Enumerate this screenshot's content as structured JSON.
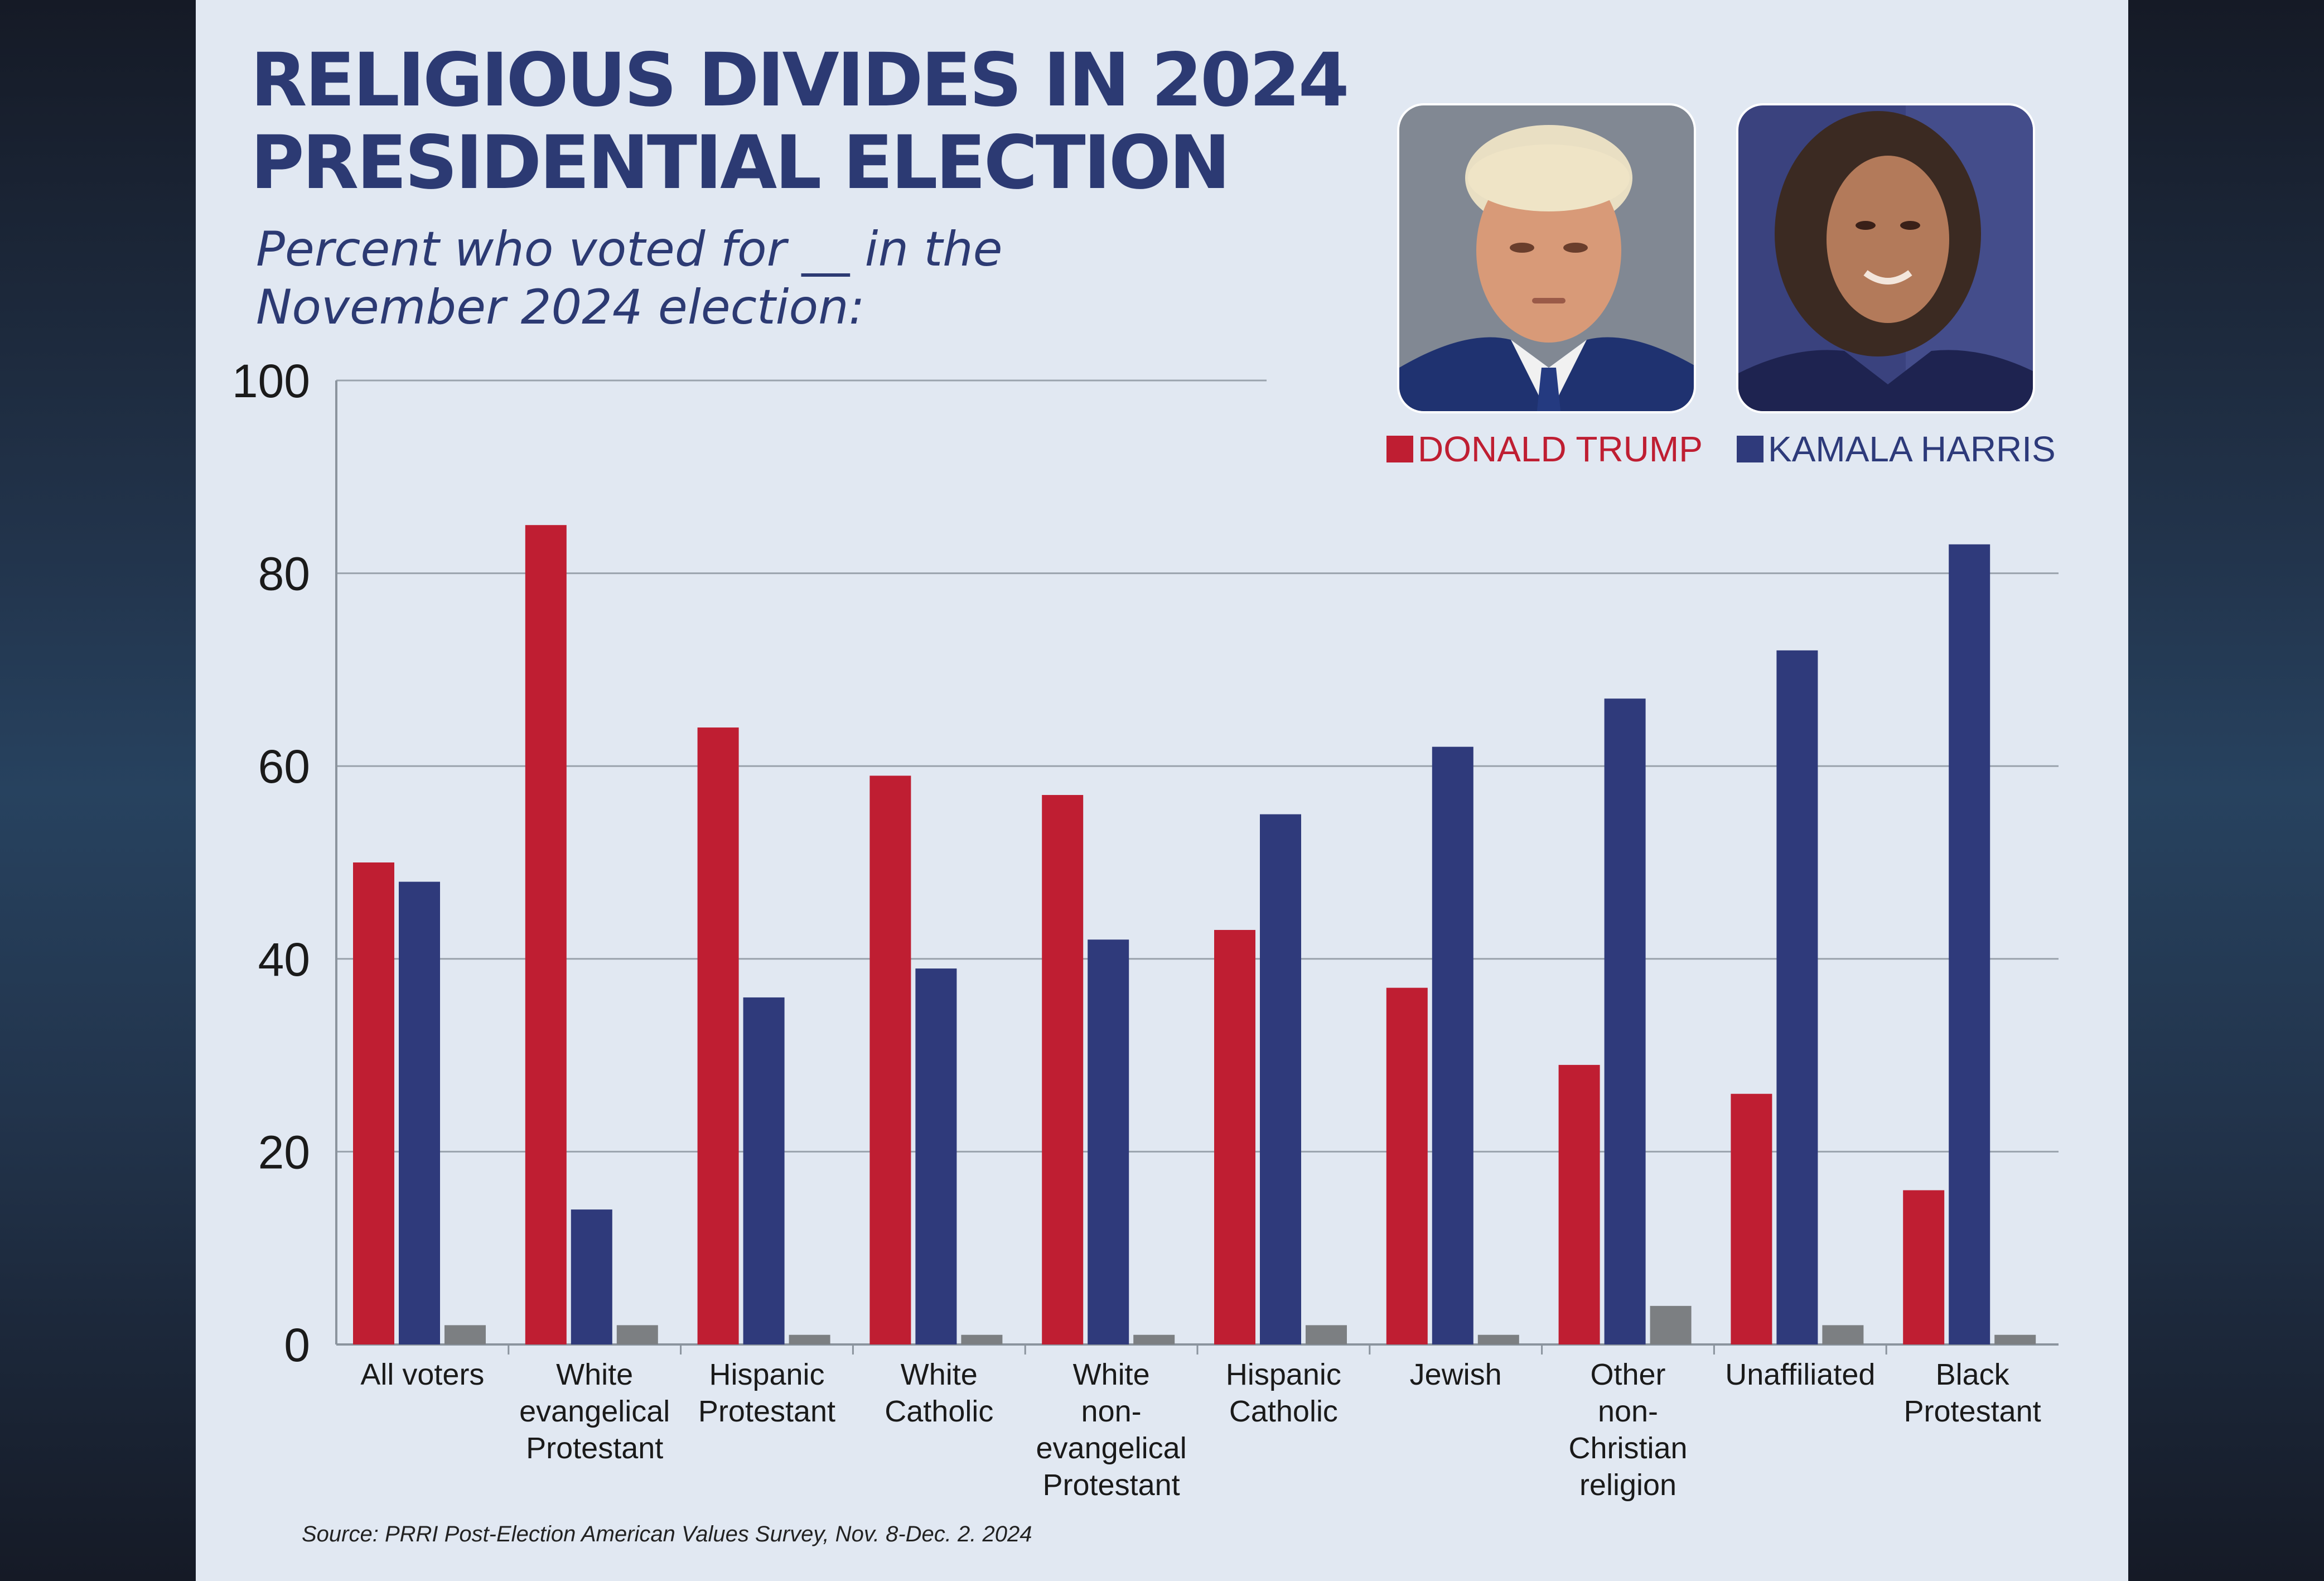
{
  "title": "RELIGIOUS DIVIDES IN 2024 PRESIDENTIAL ELECTION",
  "subtitle": "Percent who voted for __  in the November 2024 election:",
  "source": "Source: PRRI Post-Election American Values Survey, Nov. 8-Dec. 2. 2024",
  "legend": {
    "trump": "DONALD TRUMP",
    "harris": "KAMALA HARRIS"
  },
  "colors": {
    "trump": "#bf1e32",
    "harris": "#2f3a7b",
    "other": "#7c7f82",
    "title": "#2c3a73",
    "panel": "#e1e8f2"
  },
  "chart_data": {
    "type": "bar",
    "ylim": [
      0,
      100
    ],
    "yticks": [
      "0",
      "20",
      "40",
      "60",
      "80",
      "100"
    ],
    "grid": true,
    "legend_position": "top-right",
    "categories": [
      [
        "All voters"
      ],
      [
        "White",
        "evangelical",
        "Protestant"
      ],
      [
        "Hispanic",
        "Protestant"
      ],
      [
        "White",
        "Catholic"
      ],
      [
        "White",
        "non-",
        "evangelical",
        "Protestant"
      ],
      [
        "Hispanic",
        "Catholic"
      ],
      [
        "Jewish"
      ],
      [
        "Other",
        "non-",
        "Christian",
        "religion"
      ],
      [
        "Unaffiliated"
      ],
      [
        "Black",
        "Protestant"
      ]
    ],
    "series": [
      {
        "name": "DONALD TRUMP",
        "color": "#bf1e32",
        "values": [
          50,
          85,
          64,
          59,
          57,
          43,
          37,
          29,
          26,
          16
        ]
      },
      {
        "color": "#2f3a7b",
        "name": "KAMALA HARRIS",
        "values": [
          48,
          14,
          36,
          39,
          42,
          55,
          62,
          67,
          72,
          83
        ]
      },
      {
        "color": "#7c7f82",
        "values": [
          2,
          2,
          1,
          1,
          1,
          2,
          1,
          4,
          2,
          1
        ]
      }
    ]
  }
}
